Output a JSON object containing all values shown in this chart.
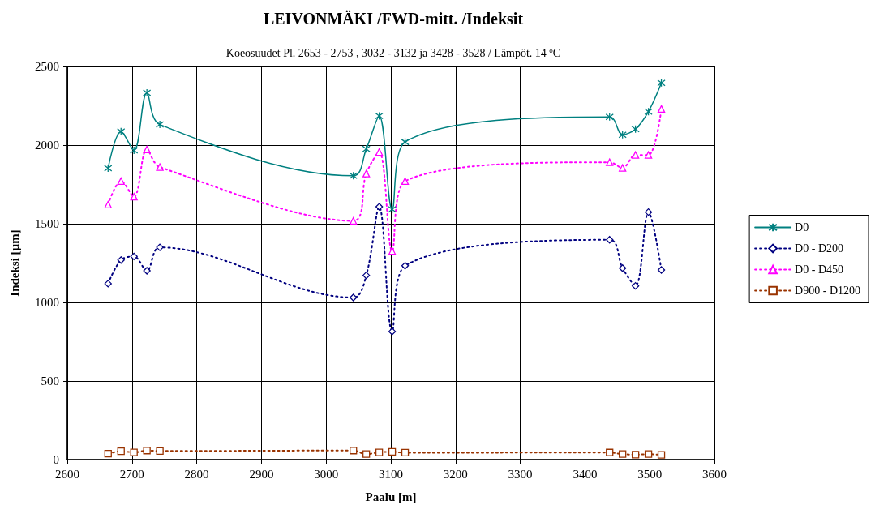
{
  "chart_data": {
    "type": "line",
    "title": "LEIVONMÄKI /FWD-mitt. /Indeksit",
    "subtitle": "Koeosuudet Pl. 2653 - 2753 , 3032 - 3132 ja 3428 - 3528 / Lämpöt. 14 $^{o}$C",
    "xlabel": "Paalu [m]",
    "ylabel": "Indeksi [µm]",
    "x": [
      2663,
      2683,
      2703,
      2723,
      2743,
      3042,
      3062,
      3082,
      3102,
      3122,
      3438,
      3458,
      3478,
      3498,
      3518
    ],
    "series": [
      {
        "name": "D0",
        "color": "#008080",
        "marker": "cross",
        "line_style": "solid",
        "values": [
          1853,
          2086,
          1966,
          2333,
          2131,
          1805,
          1975,
          2186,
          1591,
          2020,
          2179,
          2066,
          2102,
          2213,
          2396
        ]
      },
      {
        "name": "D0 - D200",
        "color": "#000080",
        "marker": "diamond",
        "line_style": "dotted",
        "values": [
          1119,
          1269,
          1292,
          1201,
          1350,
          1031,
          1172,
          1608,
          815,
          1233,
          1398,
          1218,
          1105,
          1574,
          1206
        ]
      },
      {
        "name": "D0 - D450",
        "color": "#ff00ff",
        "marker": "triangle",
        "line_style": "dotted",
        "values": [
          1622,
          1771,
          1672,
          1972,
          1860,
          1518,
          1819,
          1956,
          1326,
          1771,
          1891,
          1855,
          1937,
          1937,
          2230
        ]
      },
      {
        "name": "D900 - D1200",
        "color": "#993300",
        "marker": "square",
        "line_style": "dotted",
        "values": [
          38,
          53,
          46,
          58,
          55,
          58,
          35,
          46,
          50,
          44,
          45,
          35,
          32,
          35,
          30
        ]
      }
    ],
    "xlim": [
      2600,
      3600
    ],
    "xticks": [
      2600,
      2700,
      2800,
      2900,
      3000,
      3100,
      3200,
      3300,
      3400,
      3500,
      3600
    ],
    "ylim": [
      0,
      2500
    ],
    "yticks": [
      0,
      500,
      1000,
      1500,
      2000,
      2500
    ],
    "grid": true,
    "legend": "right"
  }
}
